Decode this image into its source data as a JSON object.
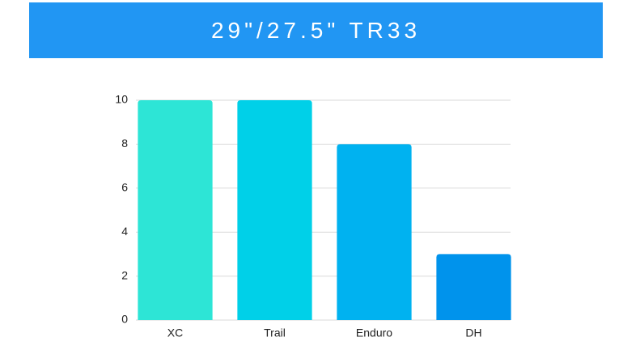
{
  "chart_data": {
    "type": "bar",
    "title": "29\"/27.5\" TR33",
    "categories": [
      "XC",
      "Trail",
      "Enduro",
      "DH"
    ],
    "values": [
      10,
      10,
      8,
      3
    ],
    "colors": [
      "#2de5d6",
      "#00d0e8",
      "#00b2f0",
      "#0093ec"
    ],
    "ylim": [
      0,
      10
    ],
    "yticks": [
      0,
      2,
      4,
      6,
      8,
      10
    ],
    "grid": true
  }
}
